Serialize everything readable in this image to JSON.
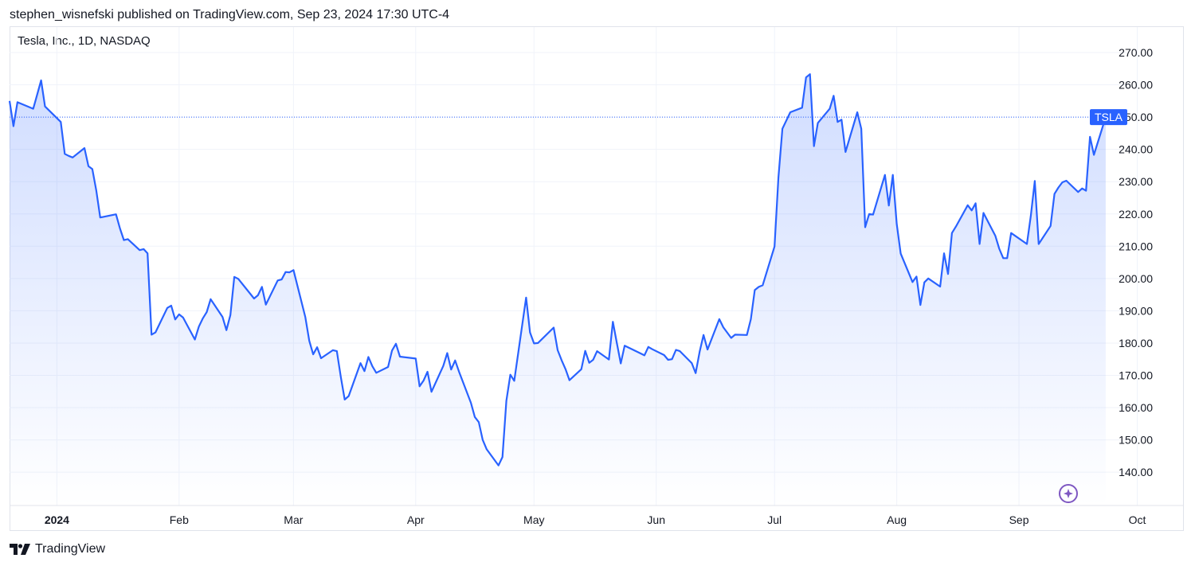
{
  "header": {
    "published": "stephen_wisnefski published on TradingView.com, Sep 23, 2024 17:30 UTC-4"
  },
  "symbol_title": "Tesla, Inc., 1D, NASDAQ",
  "footer": {
    "brand": "TradingView",
    "logo_icon": "tradingview-logo-icon"
  },
  "last_price_tag": "TSLA",
  "colors": {
    "line": "#2962ff",
    "tag_bg": "#2962ff",
    "grid": "#f0f3fa",
    "text": "#131722",
    "assistant_icon": "#7e57c2"
  },
  "assistant_icon": "sparkle-icon",
  "chart_data": {
    "type": "area",
    "title": "Tesla, Inc., 1D, NASDAQ",
    "series": [
      {
        "name": "TSLA",
        "x": [
          "2023-12-20",
          "2023-12-21",
          "2023-12-22",
          "2023-12-26",
          "2023-12-27",
          "2023-12-28",
          "2023-12-29",
          "2024-01-02",
          "2024-01-03",
          "2024-01-04",
          "2024-01-05",
          "2024-01-08",
          "2024-01-09",
          "2024-01-10",
          "2024-01-11",
          "2024-01-12",
          "2024-01-16",
          "2024-01-17",
          "2024-01-18",
          "2024-01-19",
          "2024-01-22",
          "2024-01-23",
          "2024-01-24",
          "2024-01-25",
          "2024-01-26",
          "2024-01-29",
          "2024-01-30",
          "2024-01-31",
          "2024-02-01",
          "2024-02-02",
          "2024-02-05",
          "2024-02-06",
          "2024-02-07",
          "2024-02-08",
          "2024-02-09",
          "2024-02-12",
          "2024-02-13",
          "2024-02-14",
          "2024-02-15",
          "2024-02-16",
          "2024-02-20",
          "2024-02-21",
          "2024-02-22",
          "2024-02-23",
          "2024-02-26",
          "2024-02-27",
          "2024-02-28",
          "2024-02-29",
          "2024-03-01",
          "2024-03-04",
          "2024-03-05",
          "2024-03-06",
          "2024-03-07",
          "2024-03-08",
          "2024-03-11",
          "2024-03-12",
          "2024-03-13",
          "2024-03-14",
          "2024-03-15",
          "2024-03-18",
          "2024-03-19",
          "2024-03-20",
          "2024-03-21",
          "2024-03-22",
          "2024-03-25",
          "2024-03-26",
          "2024-03-27",
          "2024-03-28",
          "2024-04-01",
          "2024-04-02",
          "2024-04-03",
          "2024-04-04",
          "2024-04-05",
          "2024-04-08",
          "2024-04-09",
          "2024-04-10",
          "2024-04-11",
          "2024-04-12",
          "2024-04-15",
          "2024-04-16",
          "2024-04-17",
          "2024-04-18",
          "2024-04-19",
          "2024-04-22",
          "2024-04-23",
          "2024-04-24",
          "2024-04-25",
          "2024-04-26",
          "2024-04-29",
          "2024-04-30",
          "2024-05-01",
          "2024-05-02",
          "2024-05-03",
          "2024-05-06",
          "2024-05-07",
          "2024-05-08",
          "2024-05-09",
          "2024-05-10",
          "2024-05-13",
          "2024-05-14",
          "2024-05-15",
          "2024-05-16",
          "2024-05-17",
          "2024-05-20",
          "2024-05-21",
          "2024-05-22",
          "2024-05-23",
          "2024-05-24",
          "2024-05-28",
          "2024-05-29",
          "2024-05-30",
          "2024-05-31",
          "2024-06-03",
          "2024-06-04",
          "2024-06-05",
          "2024-06-06",
          "2024-06-07",
          "2024-06-10",
          "2024-06-11",
          "2024-06-12",
          "2024-06-13",
          "2024-06-14",
          "2024-06-17",
          "2024-06-18",
          "2024-06-20",
          "2024-06-21",
          "2024-06-24",
          "2024-06-25",
          "2024-06-26",
          "2024-06-27",
          "2024-06-28",
          "2024-07-01",
          "2024-07-02",
          "2024-07-03",
          "2024-07-05",
          "2024-07-08",
          "2024-07-09",
          "2024-07-10",
          "2024-07-11",
          "2024-07-12",
          "2024-07-15",
          "2024-07-16",
          "2024-07-17",
          "2024-07-18",
          "2024-07-19",
          "2024-07-22",
          "2024-07-23",
          "2024-07-24",
          "2024-07-25",
          "2024-07-26",
          "2024-07-29",
          "2024-07-30",
          "2024-07-31",
          "2024-08-01",
          "2024-08-02",
          "2024-08-05",
          "2024-08-06",
          "2024-08-07",
          "2024-08-08",
          "2024-08-09",
          "2024-08-12",
          "2024-08-13",
          "2024-08-14",
          "2024-08-15",
          "2024-08-16",
          "2024-08-19",
          "2024-08-20",
          "2024-08-21",
          "2024-08-22",
          "2024-08-23",
          "2024-08-26",
          "2024-08-27",
          "2024-08-28",
          "2024-08-29",
          "2024-08-30",
          "2024-09-03",
          "2024-09-04",
          "2024-09-05",
          "2024-09-06",
          "2024-09-09",
          "2024-09-10",
          "2024-09-11",
          "2024-09-12",
          "2024-09-13",
          "2024-09-16",
          "2024-09-17",
          "2024-09-18",
          "2024-09-19",
          "2024-09-20",
          "2024-09-23"
        ],
        "values": [
          255.0,
          247.2,
          254.6,
          252.6,
          256.9,
          261.4,
          253.3,
          248.5,
          238.6,
          238.0,
          237.5,
          240.4,
          234.8,
          233.9,
          227.2,
          218.9,
          219.9,
          215.5,
          211.9,
          212.2,
          208.8,
          209.1,
          207.8,
          182.6,
          183.3,
          190.9,
          191.6,
          187.3,
          188.9,
          187.9,
          181.1,
          185.1,
          187.6,
          189.6,
          193.6,
          188.1,
          184.0,
          188.7,
          200.5,
          199.9,
          193.8,
          194.8,
          197.4,
          191.9,
          199.4,
          199.7,
          202.0,
          201.9,
          202.6,
          188.1,
          180.7,
          176.5,
          178.7,
          175.3,
          177.8,
          177.5,
          169.5,
          162.5,
          163.6,
          173.8,
          171.3,
          175.7,
          172.8,
          170.8,
          172.6,
          177.7,
          179.8,
          175.8,
          175.2,
          166.6,
          168.4,
          171.1,
          164.9,
          172.9,
          176.9,
          171.8,
          174.6,
          171.1,
          161.5,
          157.1,
          155.5,
          150.0,
          147.1,
          142.1,
          144.7,
          162.1,
          170.2,
          168.3,
          194.1,
          183.3,
          179.9,
          180.0,
          181.2,
          184.8,
          177.8,
          174.7,
          171.9,
          168.5,
          171.9,
          177.6,
          173.9,
          174.8,
          177.5,
          174.9,
          186.6,
          180.1,
          173.7,
          179.2,
          176.8,
          176.2,
          178.8,
          178.1,
          176.3,
          174.8,
          175.0,
          177.9,
          177.5,
          173.8,
          170.7,
          177.3,
          182.5,
          178.0,
          187.4,
          184.9,
          181.6,
          182.6,
          182.5,
          187.4,
          196.4,
          197.4,
          197.9,
          209.9,
          231.3,
          246.4,
          251.5,
          252.9,
          262.3,
          263.3,
          241.0,
          248.2,
          252.6,
          256.6,
          248.5,
          249.2,
          239.2,
          251.5,
          246.4,
          215.9,
          220.0,
          219.8,
          232.1,
          222.6,
          232.1,
          216.9,
          207.7,
          198.9,
          200.6,
          191.8,
          198.8,
          200.0,
          197.5,
          207.8,
          201.4,
          214.1,
          216.1,
          222.7,
          221.1,
          223.3,
          210.7,
          220.3,
          213.2,
          209.2,
          206.3,
          206.3,
          214.1,
          210.7,
          219.4,
          230.2,
          210.7,
          216.3,
          226.2,
          228.2,
          229.8,
          230.3,
          226.8,
          227.9,
          227.2,
          243.9,
          238.3,
          250.0
        ]
      }
    ],
    "ylim": [
      135,
      275
    ],
    "yticks": [
      "270.00",
      "260.00",
      "250.00",
      "240.00",
      "230.00",
      "220.00",
      "210.00",
      "200.00",
      "190.00",
      "180.00",
      "170.00",
      "160.00",
      "150.00",
      "140.00"
    ],
    "xticks": [
      {
        "label": "2024",
        "date": "2024-01-01",
        "bold": true
      },
      {
        "label": "Feb",
        "date": "2024-02-01"
      },
      {
        "label": "Mar",
        "date": "2024-03-01"
      },
      {
        "label": "Apr",
        "date": "2024-04-01"
      },
      {
        "label": "May",
        "date": "2024-05-01"
      },
      {
        "label": "Jun",
        "date": "2024-06-01"
      },
      {
        "label": "Jul",
        "date": "2024-07-01"
      },
      {
        "label": "Aug",
        "date": "2024-08-01"
      },
      {
        "label": "Sep",
        "date": "2024-09-01"
      },
      {
        "label": "Oct",
        "date": "2024-10-01"
      }
    ],
    "last_value": 250.0,
    "grid": true,
    "price_line": "dotted"
  }
}
